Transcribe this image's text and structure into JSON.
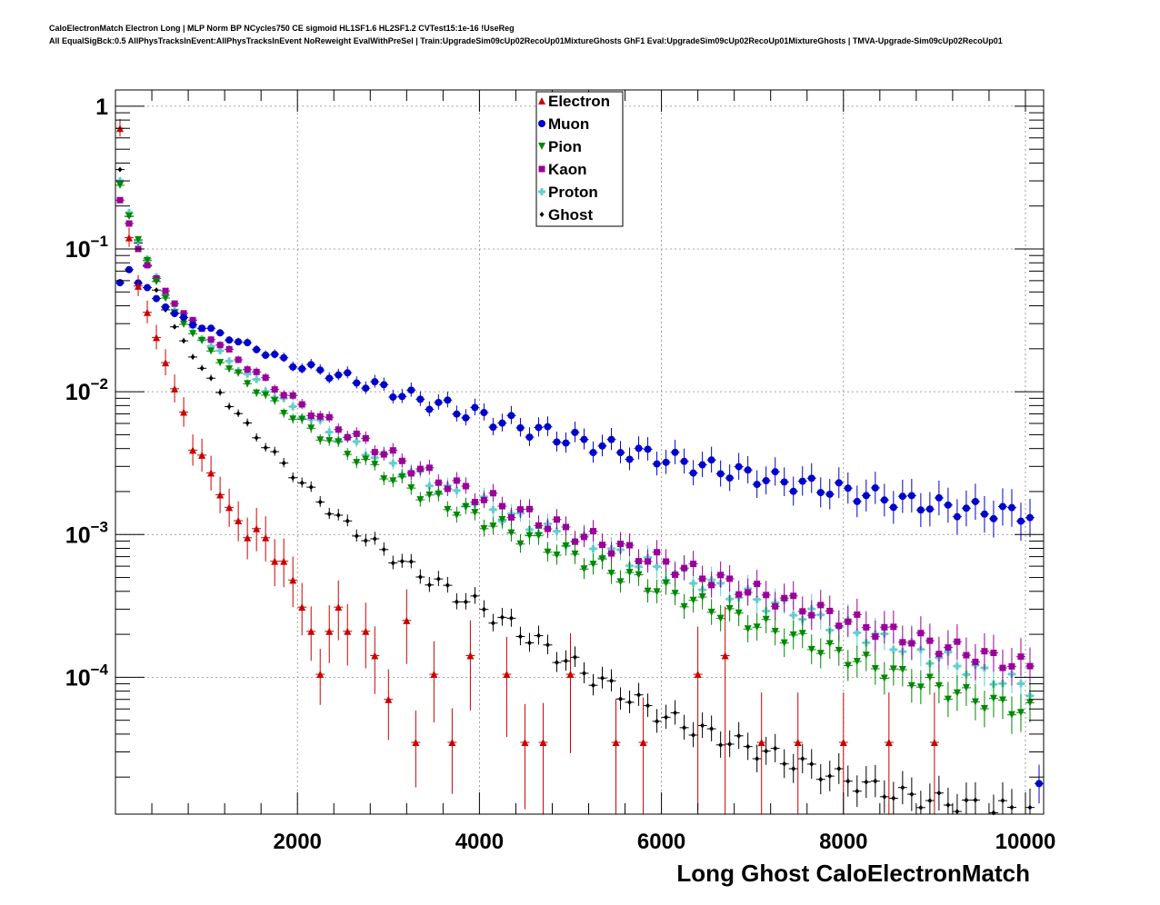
{
  "header": {
    "line1": "CaloElectronMatch Electron Long | MLP Norm BP NCycles750 CE sigmoid HL1SF1.6 HL2SF1.2 CVTest15:1e-16 !UseReg",
    "line2": "All EqualSigBck:0.5 AllPhysTracksInEvent:AllPhysTracksInEvent NoReweight EvalWithPreSel | Train:UpgradeSim09cUp02RecoUp01MixtureGhosts GhF1 Eval:UpgradeSim09cUp02RecoUp01MixtureGhosts | TMVA-Upgrade-Sim09cUp02RecoUp01"
  },
  "chart_data": {
    "type": "scatter",
    "title": "CaloElectronMatch Electron Long",
    "xlabel": "Long Ghost CaloElectronMatch",
    "ylabel": "",
    "yscale": "log",
    "xlim": [
      0,
      10200
    ],
    "ylim": [
      1.1e-05,
      1.3
    ],
    "x_ticks": [
      2000,
      4000,
      6000,
      8000,
      10000
    ],
    "x_tick_labels": [
      "2000",
      "4000",
      "6000",
      "8000",
      "10000"
    ],
    "y_ticks": [
      0.0001,
      0.001,
      0.01,
      0.1,
      1
    ],
    "y_tick_labels": [
      {
        "base": "10",
        "exp": "−4"
      },
      {
        "base": "10",
        "exp": "−3"
      },
      {
        "base": "10",
        "exp": "−2"
      },
      {
        "base": "10",
        "exp": "−1"
      },
      {
        "base": "1",
        "exp": ""
      }
    ],
    "grid": true,
    "legend_position": "top-center",
    "series": [
      {
        "name": "Electron",
        "color": "#cc0000",
        "marker": "triangle-up",
        "anchors": [
          [
            50,
            0.7
          ],
          [
            150,
            0.12
          ],
          [
            250,
            0.055
          ],
          [
            350,
            0.036
          ],
          [
            450,
            0.024
          ],
          [
            550,
            0.016
          ],
          [
            650,
            0.0105
          ],
          [
            750,
            0.0072
          ],
          [
            850,
            0.0039
          ],
          [
            950,
            0.0036
          ],
          [
            1050,
            0.0027
          ],
          [
            1150,
            0.0019
          ],
          [
            1250,
            0.00155
          ],
          [
            1350,
            0.00125
          ],
          [
            1450,
            0.00095
          ],
          [
            1550,
            0.0011
          ],
          [
            1650,
            0.00095
          ],
          [
            1750,
            0.00065
          ],
          [
            1850,
            0.00065
          ],
          [
            1950,
            0.00048
          ],
          [
            2050,
            0.00031
          ],
          [
            2150,
            0.00021
          ],
          [
            2250,
            0.000105
          ],
          [
            2350,
            0.00021
          ],
          [
            2450,
            0.00031
          ],
          [
            2550,
            0.00021
          ],
          [
            2750,
            0.00021
          ],
          [
            2850,
            0.000142
          ],
          [
            3000,
            7e-05
          ],
          [
            3200,
            0.00025
          ],
          [
            3300,
            3.5e-05
          ],
          [
            3500,
            0.000105
          ],
          [
            3700,
            3.5e-05
          ],
          [
            3900,
            0.000142
          ],
          [
            4300,
            0.000105
          ],
          [
            4500,
            3.5e-05
          ],
          [
            4700,
            3.5e-05
          ],
          [
            5000,
            0.000105
          ],
          [
            5500,
            3.5e-05
          ],
          [
            5800,
            3.5e-05
          ],
          [
            6400,
            0.000105
          ],
          [
            6700,
            0.000142
          ],
          [
            7100,
            3.5e-05
          ],
          [
            7500,
            3.5e-05
          ],
          [
            8000,
            3.5e-05
          ],
          [
            8500,
            3.5e-05
          ],
          [
            9000,
            3.5e-05
          ]
        ],
        "errors": true
      },
      {
        "name": "Muon",
        "color": "#0000cc",
        "marker": "circle",
        "anchors": [
          [
            50,
            0.058
          ],
          [
            150,
            0.072
          ],
          [
            250,
            0.058
          ],
          [
            350,
            0.053
          ],
          [
            450,
            0.045
          ],
          [
            550,
            0.04
          ],
          [
            650,
            0.035
          ],
          [
            850,
            0.03
          ],
          [
            1050,
            0.027
          ],
          [
            1250,
            0.024
          ],
          [
            1450,
            0.021
          ],
          [
            1650,
            0.019
          ],
          [
            1850,
            0.0165
          ],
          [
            2050,
            0.015
          ],
          [
            2450,
            0.013
          ],
          [
            2850,
            0.011
          ],
          [
            3250,
            0.0092
          ],
          [
            3650,
            0.0078
          ],
          [
            4050,
            0.0067
          ],
          [
            4450,
            0.0057
          ],
          [
            4850,
            0.0049
          ],
          [
            5250,
            0.0043
          ],
          [
            5650,
            0.0038
          ],
          [
            6050,
            0.0034
          ],
          [
            6450,
            0.003
          ],
          [
            6850,
            0.0027
          ],
          [
            7250,
            0.0024
          ],
          [
            7650,
            0.0022
          ],
          [
            8050,
            0.002
          ],
          [
            8450,
            0.0018
          ],
          [
            8850,
            0.00165
          ],
          [
            9250,
            0.00153
          ],
          [
            9650,
            0.00145
          ],
          [
            10050,
            0.00138
          ]
        ],
        "errors": true,
        "extra": [
          [
            10150,
            1.8e-05
          ]
        ]
      },
      {
        "name": "Pion",
        "color": "#008800",
        "marker": "triangle-down",
        "anchors": [
          [
            50,
            0.28
          ],
          [
            150,
            0.17
          ],
          [
            250,
            0.115
          ],
          [
            350,
            0.083
          ],
          [
            450,
            0.06
          ],
          [
            550,
            0.045
          ],
          [
            650,
            0.035
          ],
          [
            850,
            0.026
          ],
          [
            1050,
            0.019
          ],
          [
            1250,
            0.0145
          ],
          [
            1450,
            0.0115
          ],
          [
            1650,
            0.0092
          ],
          [
            1850,
            0.0074
          ],
          [
            2050,
            0.006
          ],
          [
            2450,
            0.0041
          ],
          [
            2850,
            0.0029
          ],
          [
            3250,
            0.0021
          ],
          [
            3650,
            0.0016
          ],
          [
            4050,
            0.00125
          ],
          [
            4450,
            0.00098
          ],
          [
            4850,
            0.00078
          ],
          [
            5250,
            0.00062
          ],
          [
            5650,
            0.0005
          ],
          [
            6050,
            0.0004
          ],
          [
            6450,
            0.00032
          ],
          [
            6850,
            0.00026
          ],
          [
            7250,
            0.00021
          ],
          [
            7650,
            0.00017
          ],
          [
            8050,
            0.000138
          ],
          [
            8450,
            0.000112
          ],
          [
            8850,
            9.2e-05
          ],
          [
            9250,
            7.7e-05
          ],
          [
            9650,
            6.5e-05
          ],
          [
            10050,
            5.8e-05
          ]
        ],
        "errors": true
      },
      {
        "name": "Kaon",
        "color": "#990099",
        "marker": "square",
        "anchors": [
          [
            50,
            0.22
          ],
          [
            150,
            0.15
          ],
          [
            250,
            0.1
          ],
          [
            350,
            0.078
          ],
          [
            450,
            0.062
          ],
          [
            550,
            0.05
          ],
          [
            650,
            0.042
          ],
          [
            850,
            0.031
          ],
          [
            1050,
            0.024
          ],
          [
            1250,
            0.019
          ],
          [
            1450,
            0.015
          ],
          [
            1650,
            0.012
          ],
          [
            1850,
            0.0098
          ],
          [
            2050,
            0.008
          ],
          [
            2450,
            0.0056
          ],
          [
            2850,
            0.0041
          ],
          [
            3250,
            0.003
          ],
          [
            3650,
            0.0023
          ],
          [
            4050,
            0.0018
          ],
          [
            4450,
            0.00142
          ],
          [
            4850,
            0.00113
          ],
          [
            5250,
            0.00092
          ],
          [
            5650,
            0.00076
          ],
          [
            6050,
            0.00063
          ],
          [
            6450,
            0.00052
          ],
          [
            6850,
            0.00043
          ],
          [
            7250,
            0.00036
          ],
          [
            7650,
            0.0003
          ],
          [
            8050,
            0.00025
          ],
          [
            8450,
            0.00021
          ],
          [
            8850,
            0.00018
          ],
          [
            9250,
            0.000155
          ],
          [
            9650,
            0.000135
          ],
          [
            10050,
            0.000118
          ]
        ],
        "errors": true
      },
      {
        "name": "Proton",
        "color": "#66cccc",
        "marker": "cross",
        "anchors": [
          [
            50,
            0.3
          ],
          [
            150,
            0.18
          ],
          [
            250,
            0.115
          ],
          [
            350,
            0.085
          ],
          [
            450,
            0.063
          ],
          [
            550,
            0.048
          ],
          [
            650,
            0.038
          ],
          [
            850,
            0.028
          ],
          [
            1050,
            0.021
          ],
          [
            1250,
            0.0165
          ],
          [
            1450,
            0.013
          ],
          [
            1650,
            0.0105
          ],
          [
            1850,
            0.0085
          ],
          [
            2050,
            0.007
          ],
          [
            2450,
            0.0049
          ],
          [
            2850,
            0.0036
          ],
          [
            3250,
            0.0027
          ],
          [
            3650,
            0.002
          ],
          [
            4050,
            0.0016
          ],
          [
            4450,
            0.00125
          ],
          [
            4850,
            0.001
          ],
          [
            5250,
            0.00082
          ],
          [
            5650,
            0.00067
          ],
          [
            6050,
            0.00055
          ],
          [
            6450,
            0.00046
          ],
          [
            6850,
            0.00038
          ],
          [
            7250,
            0.00032
          ],
          [
            7650,
            0.00027
          ],
          [
            8050,
            0.00022
          ],
          [
            8450,
            0.00018
          ],
          [
            8850,
            0.00015
          ],
          [
            9250,
            0.000125
          ],
          [
            9650,
            0.0001
          ],
          [
            10050,
            8.5e-05
          ]
        ],
        "errors": true
      },
      {
        "name": "Ghost",
        "color": "#000000",
        "marker": "diamond",
        "anchors": [
          [
            50,
            0.36
          ],
          [
            150,
            0.17
          ],
          [
            250,
            0.11
          ],
          [
            350,
            0.075
          ],
          [
            450,
            0.052
          ],
          [
            550,
            0.038
          ],
          [
            650,
            0.028
          ],
          [
            850,
            0.018
          ],
          [
            1050,
            0.012
          ],
          [
            1250,
            0.0082
          ],
          [
            1450,
            0.0058
          ],
          [
            1650,
            0.0042
          ],
          [
            1850,
            0.0031
          ],
          [
            2050,
            0.0023
          ],
          [
            2450,
            0.0013
          ],
          [
            2850,
            0.00085
          ],
          [
            3250,
            0.00058
          ],
          [
            3650,
            0.00041
          ],
          [
            4050,
            0.0003
          ],
          [
            4450,
            0.00021
          ],
          [
            4850,
            0.000145
          ],
          [
            5250,
            0.0001
          ],
          [
            5650,
            7.2e-05
          ],
          [
            6050,
            5.2e-05
          ],
          [
            6450,
            4.2e-05
          ],
          [
            6850,
            3.4e-05
          ],
          [
            7250,
            2.8e-05
          ],
          [
            7650,
            2.3e-05
          ],
          [
            8050,
            1.9e-05
          ],
          [
            8450,
            1.6e-05
          ],
          [
            8850,
            1.4e-05
          ],
          [
            9250,
            1.3e-05
          ],
          [
            9650,
            1.2e-05
          ],
          [
            10050,
            1.2e-05
          ]
        ],
        "errors": true
      }
    ]
  }
}
